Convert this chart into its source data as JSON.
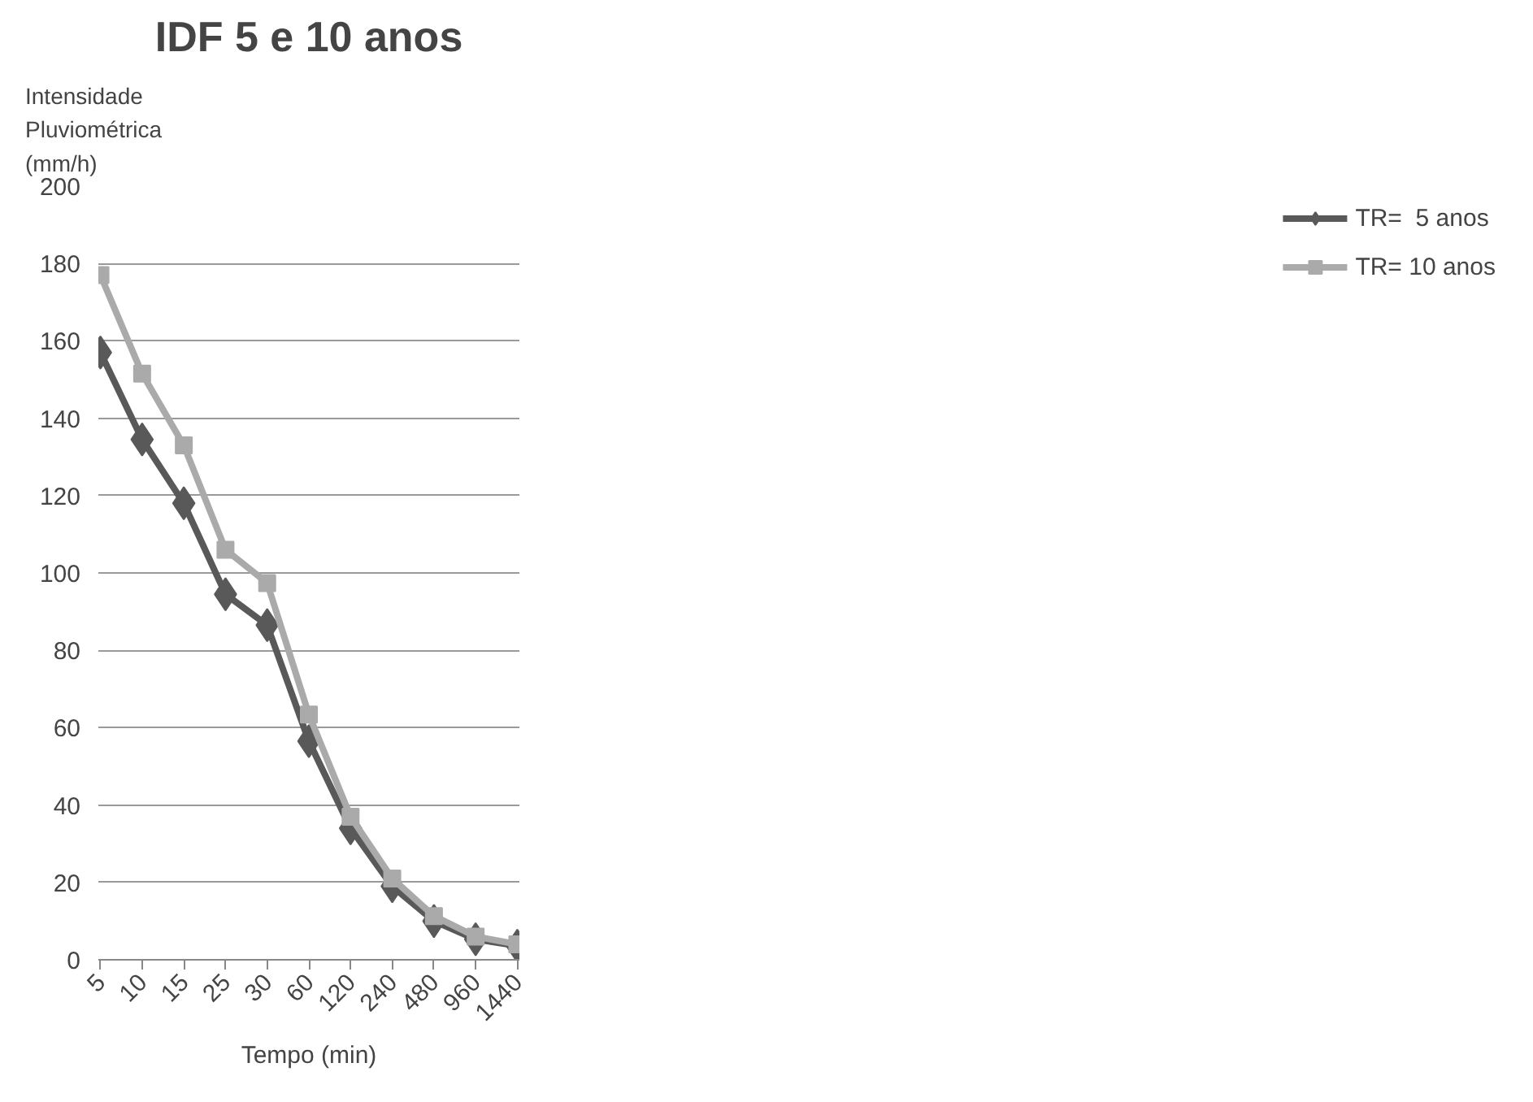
{
  "chart_data": {
    "type": "line",
    "title": "IDF 5 e 10 anos",
    "ylabel": "Intensidade\nPluviométrica\n(mm/h)",
    "xlabel": "Tempo (min)",
    "categories": [
      "5",
      "10",
      "15",
      "25",
      "30",
      "60",
      "120",
      "240",
      "480",
      "960",
      "1440"
    ],
    "series": [
      {
        "name": "TR=  5 anos",
        "color": "#595959",
        "marker": "diamond",
        "values": [
          157,
          134.5,
          118,
          94.5,
          86.5,
          56.5,
          34,
          19,
          10,
          5.3,
          3.6
        ]
      },
      {
        "name": "TR= 10 anos",
        "color": "#aaaaaa",
        "marker": "square",
        "values": [
          177,
          151.5,
          133,
          106,
          97.4,
          63.4,
          37,
          21,
          11.3,
          6,
          4
        ]
      }
    ],
    "ylim": [
      0,
      200
    ],
    "yticks": [
      0,
      20,
      40,
      60,
      80,
      100,
      120,
      140,
      160,
      180,
      200
    ],
    "grid": "y",
    "legend": "right",
    "line_style": "solid"
  }
}
